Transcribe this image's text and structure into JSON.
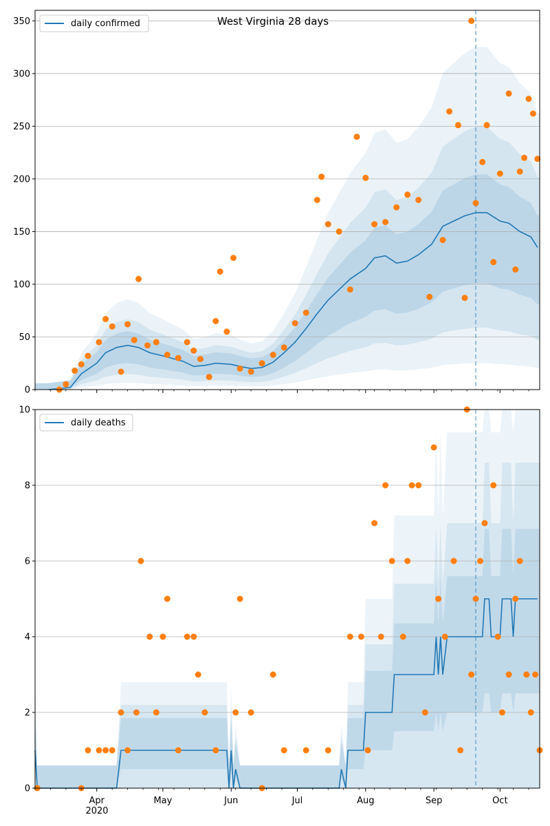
{
  "chart_data": [
    {
      "type": "line",
      "title": "West Virginia 28 days",
      "xlabel": "",
      "ylabel": "",
      "ylim": [
        0,
        360
      ],
      "yticks": [
        0,
        50,
        100,
        150,
        200,
        250,
        300,
        350
      ],
      "grid": "horizontal",
      "legend_position": "top-left",
      "forecast_start": "2020-09-20",
      "colors": {
        "line": "#1f77b4",
        "points": "#ff7f0e",
        "band": "#1f77b4"
      },
      "series": [
        {
          "name": "daily confirmed",
          "points": [
            [
              "2020-03-10",
              0
            ],
            [
              "2020-03-20",
              2
            ],
            [
              "2020-03-25",
              15
            ],
            [
              "2020-04-01",
              25
            ],
            [
              "2020-04-05",
              35
            ],
            [
              "2020-04-10",
              40
            ],
            [
              "2020-04-15",
              42
            ],
            [
              "2020-04-20",
              40
            ],
            [
              "2020-04-25",
              35
            ],
            [
              "2020-05-01",
              32
            ],
            [
              "2020-05-10",
              27
            ],
            [
              "2020-05-15",
              22
            ],
            [
              "2020-05-20",
              23
            ],
            [
              "2020-05-25",
              25
            ],
            [
              "2020-06-01",
              24
            ],
            [
              "2020-06-05",
              22
            ],
            [
              "2020-06-10",
              20
            ],
            [
              "2020-06-15",
              21
            ],
            [
              "2020-06-20",
              26
            ],
            [
              "2020-06-25",
              35
            ],
            [
              "2020-06-30",
              45
            ],
            [
              "2020-07-05",
              58
            ],
            [
              "2020-07-10",
              72
            ],
            [
              "2020-07-15",
              85
            ],
            [
              "2020-07-20",
              95
            ],
            [
              "2020-07-25",
              105
            ],
            [
              "2020-08-01",
              115
            ],
            [
              "2020-08-05",
              125
            ],
            [
              "2020-08-10",
              127
            ],
            [
              "2020-08-15",
              120
            ],
            [
              "2020-08-20",
              122
            ],
            [
              "2020-08-25",
              128
            ],
            [
              "2020-08-31",
              138
            ],
            [
              "2020-09-05",
              155
            ],
            [
              "2020-09-10",
              160
            ],
            [
              "2020-09-15",
              165
            ],
            [
              "2020-09-20",
              168
            ],
            [
              "2020-09-25",
              168
            ],
            [
              "2020-10-01",
              160
            ],
            [
              "2020-10-05",
              158
            ],
            [
              "2020-10-10",
              150
            ],
            [
              "2020-10-15",
              145
            ],
            [
              "2020-10-18",
              135
            ]
          ],
          "observed": [
            [
              "2020-03-15",
              0
            ],
            [
              "2020-03-18",
              5
            ],
            [
              "2020-03-22",
              18
            ],
            [
              "2020-03-25",
              24
            ],
            [
              "2020-03-28",
              32
            ],
            [
              "2020-04-02",
              45
            ],
            [
              "2020-04-05",
              67
            ],
            [
              "2020-04-08",
              60
            ],
            [
              "2020-04-12",
              17
            ],
            [
              "2020-04-15",
              62
            ],
            [
              "2020-04-18",
              47
            ],
            [
              "2020-04-20",
              105
            ],
            [
              "2020-04-24",
              42
            ],
            [
              "2020-04-28",
              45
            ],
            [
              "2020-05-03",
              33
            ],
            [
              "2020-05-08",
              30
            ],
            [
              "2020-05-12",
              45
            ],
            [
              "2020-05-15",
              37
            ],
            [
              "2020-05-18",
              29
            ],
            [
              "2020-05-22",
              12
            ],
            [
              "2020-05-25",
              65
            ],
            [
              "2020-05-27",
              112
            ],
            [
              "2020-05-30",
              55
            ],
            [
              "2020-06-02",
              125
            ],
            [
              "2020-06-05",
              20
            ],
            [
              "2020-06-10",
              17
            ],
            [
              "2020-06-15",
              25
            ],
            [
              "2020-06-20",
              33
            ],
            [
              "2020-06-25",
              40
            ],
            [
              "2020-06-30",
              63
            ],
            [
              "2020-07-05",
              73
            ],
            [
              "2020-07-10",
              180
            ],
            [
              "2020-07-12",
              202
            ],
            [
              "2020-07-15",
              157
            ],
            [
              "2020-07-20",
              150
            ],
            [
              "2020-07-25",
              95
            ],
            [
              "2020-07-28",
              240
            ],
            [
              "2020-08-01",
              201
            ],
            [
              "2020-08-05",
              157
            ],
            [
              "2020-08-10",
              159
            ],
            [
              "2020-08-15",
              173
            ],
            [
              "2020-08-20",
              185
            ],
            [
              "2020-08-25",
              180
            ],
            [
              "2020-08-30",
              88
            ],
            [
              "2020-09-05",
              142
            ],
            [
              "2020-09-08",
              264
            ],
            [
              "2020-09-12",
              251
            ],
            [
              "2020-09-15",
              87
            ],
            [
              "2020-09-18",
              350
            ],
            [
              "2020-09-20",
              177
            ],
            [
              "2020-09-23",
              216
            ],
            [
              "2020-09-25",
              251
            ],
            [
              "2020-09-28",
              121
            ],
            [
              "2020-10-01",
              205
            ],
            [
              "2020-10-05",
              281
            ],
            [
              "2020-10-08",
              114
            ],
            [
              "2020-10-10",
              207
            ],
            [
              "2020-10-12",
              220
            ],
            [
              "2020-10-14",
              276
            ],
            [
              "2020-10-16",
              262
            ],
            [
              "2020-10-18",
              219
            ]
          ]
        }
      ]
    },
    {
      "type": "line",
      "title": "",
      "xlabel": "",
      "ylabel": "",
      "ylim": [
        0,
        10
      ],
      "yticks": [
        0,
        2,
        4,
        6,
        8,
        10
      ],
      "grid": "horizontal",
      "legend_position": "top-left",
      "forecast_start": "2020-09-20",
      "colors": {
        "line": "#1f77b4",
        "points": "#ff7f0e",
        "band": "#1f77b4"
      },
      "x_ticks": [
        {
          "date": "2020-04-01",
          "label": "Apr"
        },
        {
          "date": "2020-05-01",
          "label": "May"
        },
        {
          "date": "2020-06-01",
          "label": "Jun"
        },
        {
          "date": "2020-07-01",
          "label": "Jul"
        },
        {
          "date": "2020-08-01",
          "label": "Aug"
        },
        {
          "date": "2020-09-01",
          "label": "Sep"
        },
        {
          "date": "2020-10-01",
          "label": "Oct"
        }
      ],
      "x_year_label": "2020",
      "x_range": [
        "2020-03-04",
        "2020-10-19"
      ],
      "series": [
        {
          "name": "daily deaths",
          "points": [
            [
              "2020-03-04",
              1
            ],
            [
              "2020-03-05",
              0
            ],
            [
              "2020-04-10",
              0
            ],
            [
              "2020-04-12",
              1
            ],
            [
              "2020-05-25",
              1
            ],
            [
              "2020-05-30",
              1
            ],
            [
              "2020-05-31",
              0
            ],
            [
              "2020-06-01",
              1
            ],
            [
              "2020-06-02",
              0
            ],
            [
              "2020-06-03",
              0.5
            ],
            [
              "2020-06-05",
              0
            ],
            [
              "2020-07-20",
              0
            ],
            [
              "2020-07-21",
              0.5
            ],
            [
              "2020-07-23",
              0
            ],
            [
              "2020-07-24",
              1
            ],
            [
              "2020-07-31",
              1
            ],
            [
              "2020-08-01",
              2
            ],
            [
              "2020-08-13",
              2
            ],
            [
              "2020-08-14",
              3
            ],
            [
              "2020-08-26",
              3
            ],
            [
              "2020-08-27",
              3
            ],
            [
              "2020-09-01",
              3
            ],
            [
              "2020-09-02",
              4
            ],
            [
              "2020-09-03",
              3
            ],
            [
              "2020-09-04",
              4
            ],
            [
              "2020-09-05",
              3
            ],
            [
              "2020-09-07",
              4
            ],
            [
              "2020-09-09",
              4
            ],
            [
              "2020-09-22",
              4
            ],
            [
              "2020-09-23",
              4
            ],
            [
              "2020-09-24",
              5
            ],
            [
              "2020-09-26",
              5
            ],
            [
              "2020-09-27",
              4
            ],
            [
              "2020-10-01",
              4
            ],
            [
              "2020-10-02",
              5
            ],
            [
              "2020-10-06",
              5
            ],
            [
              "2020-10-07",
              4
            ],
            [
              "2020-10-08",
              5
            ],
            [
              "2020-10-18",
              5
            ]
          ],
          "observed": [
            [
              "2020-03-05",
              0
            ],
            [
              "2020-03-25",
              0
            ],
            [
              "2020-03-28",
              1
            ],
            [
              "2020-04-02",
              1
            ],
            [
              "2020-04-05",
              1
            ],
            [
              "2020-04-08",
              1
            ],
            [
              "2020-04-12",
              2
            ],
            [
              "2020-04-15",
              1
            ],
            [
              "2020-04-19",
              2
            ],
            [
              "2020-04-21",
              6
            ],
            [
              "2020-04-25",
              4
            ],
            [
              "2020-04-28",
              2
            ],
            [
              "2020-05-01",
              4
            ],
            [
              "2020-05-03",
              5
            ],
            [
              "2020-05-08",
              1
            ],
            [
              "2020-05-12",
              4
            ],
            [
              "2020-05-15",
              4
            ],
            [
              "2020-05-17",
              3
            ],
            [
              "2020-05-20",
              2
            ],
            [
              "2020-05-25",
              1
            ],
            [
              "2020-06-03",
              2
            ],
            [
              "2020-06-05",
              5
            ],
            [
              "2020-06-10",
              2
            ],
            [
              "2020-06-15",
              0
            ],
            [
              "2020-06-20",
              3
            ],
            [
              "2020-06-25",
              1
            ],
            [
              "2020-07-05",
              1
            ],
            [
              "2020-07-15",
              1
            ],
            [
              "2020-07-25",
              4
            ],
            [
              "2020-07-30",
              4
            ],
            [
              "2020-08-02",
              1
            ],
            [
              "2020-08-05",
              7
            ],
            [
              "2020-08-08",
              4
            ],
            [
              "2020-08-10",
              8
            ],
            [
              "2020-08-13",
              6
            ],
            [
              "2020-08-18",
              4
            ],
            [
              "2020-08-20",
              6
            ],
            [
              "2020-08-22",
              8
            ],
            [
              "2020-08-25",
              8
            ],
            [
              "2020-08-28",
              2
            ],
            [
              "2020-09-01",
              9
            ],
            [
              "2020-09-03",
              5
            ],
            [
              "2020-09-06",
              4
            ],
            [
              "2020-09-10",
              6
            ],
            [
              "2020-09-13",
              1
            ],
            [
              "2020-09-16",
              10
            ],
            [
              "2020-09-18",
              3
            ],
            [
              "2020-09-20",
              5
            ],
            [
              "2020-09-22",
              6
            ],
            [
              "2020-09-24",
              7
            ],
            [
              "2020-09-28",
              8
            ],
            [
              "2020-09-30",
              4
            ],
            [
              "2020-10-02",
              2
            ],
            [
              "2020-10-05",
              3
            ],
            [
              "2020-10-08",
              5
            ],
            [
              "2020-10-10",
              6
            ],
            [
              "2020-10-13",
              3
            ],
            [
              "2020-10-15",
              2
            ],
            [
              "2020-10-17",
              3
            ],
            [
              "2020-10-19",
              1
            ]
          ]
        }
      ]
    }
  ]
}
